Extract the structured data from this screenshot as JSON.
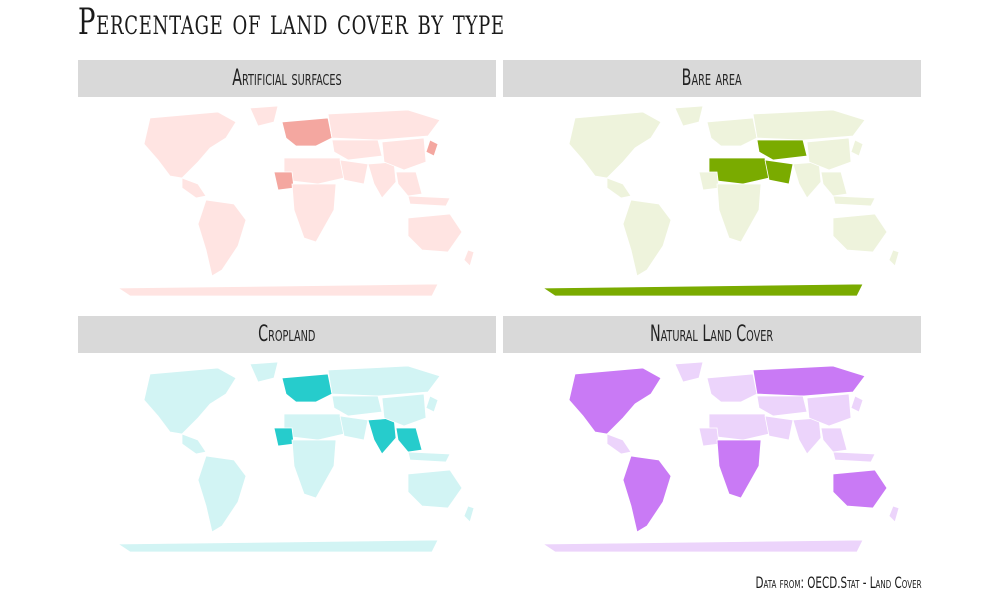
{
  "title": "Percentage of land cover by type",
  "caption": "Data from: OECD.Stat - Land Cover",
  "panels": [
    {
      "label": "Artificial surfaces",
      "base_color": "#ffe4e2",
      "accent_color": "#f4a7a0",
      "highlight_regions": [
        "europe",
        "japan",
        "west-africa"
      ]
    },
    {
      "label": "Bare area",
      "base_color": "#eef3dc",
      "accent_color": "#7aab00",
      "highlight_regions": [
        "sahara",
        "arabia",
        "central-asia",
        "antarctica"
      ]
    },
    {
      "label": "Cropland",
      "base_color": "#d2f4f4",
      "accent_color": "#26cccc",
      "highlight_regions": [
        "europe",
        "india",
        "west-africa",
        "southeast-asia"
      ]
    },
    {
      "label": "Natural Land Cover",
      "base_color": "#ecd4fb",
      "accent_color": "#c97af5",
      "highlight_regions": [
        "north-america",
        "south-america",
        "central-africa",
        "russia",
        "australia"
      ]
    }
  ]
}
